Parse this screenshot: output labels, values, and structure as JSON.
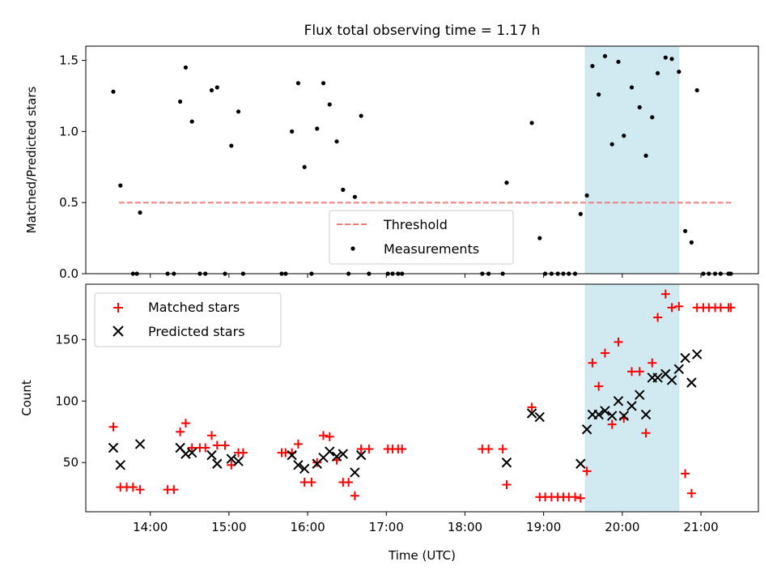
{
  "chart_data": [
    {
      "type": "scatter",
      "title": "Flux total observing time = 1.17 h",
      "ylabel": "Matched/Predicted stars",
      "xlabel": "",
      "xlim": [
        13.18,
        21.73
      ],
      "ylim": [
        0,
        1.6
      ],
      "yticks": [
        0.0,
        0.5,
        1.0,
        1.5
      ],
      "ytick_labels": [
        "0.0",
        "0.5",
        "1.0",
        "1.5"
      ],
      "highlight_span": [
        19.53,
        20.72
      ],
      "highlight_color": "#add8e6",
      "legend_position": "lower-center",
      "threshold": {
        "name": "Threshold",
        "y": 0.5,
        "x": [
          13.6,
          21.38
        ],
        "color": "#f08080",
        "style": "dashed"
      },
      "series": [
        {
          "name": "Measurements",
          "color": "#000000",
          "marker": "dot",
          "points": [
            [
              13.53,
              1.28
            ],
            [
              13.62,
              0.62
            ],
            [
              13.78,
              0.0
            ],
            [
              13.83,
              0.0
            ],
            [
              13.87,
              0.43
            ],
            [
              14.22,
              0.0
            ],
            [
              14.3,
              0.0
            ],
            [
              14.38,
              1.21
            ],
            [
              14.45,
              1.45
            ],
            [
              14.53,
              1.07
            ],
            [
              14.63,
              0.0
            ],
            [
              14.7,
              0.0
            ],
            [
              14.78,
              1.29
            ],
            [
              14.85,
              1.31
            ],
            [
              14.95,
              0.0
            ],
            [
              15.03,
              0.9
            ],
            [
              15.12,
              1.14
            ],
            [
              15.18,
              0.0
            ],
            [
              15.67,
              0.0
            ],
            [
              15.72,
              0.0
            ],
            [
              15.8,
              1.0
            ],
            [
              15.88,
              1.34
            ],
            [
              15.96,
              0.75
            ],
            [
              16.05,
              0.0
            ],
            [
              16.12,
              1.02
            ],
            [
              16.2,
              1.34
            ],
            [
              16.28,
              1.19
            ],
            [
              16.37,
              0.93
            ],
            [
              16.45,
              0.59
            ],
            [
              16.52,
              0.0
            ],
            [
              16.6,
              0.54
            ],
            [
              16.68,
              1.11
            ],
            [
              16.78,
              0.0
            ],
            [
              17.02,
              0.0
            ],
            [
              17.08,
              0.0
            ],
            [
              17.15,
              0.0
            ],
            [
              17.2,
              0.0
            ],
            [
              18.22,
              0.0
            ],
            [
              18.3,
              0.0
            ],
            [
              18.48,
              0.0
            ],
            [
              18.53,
              0.64
            ],
            [
              18.85,
              1.06
            ],
            [
              18.95,
              0.25
            ],
            [
              19.02,
              0.0
            ],
            [
              19.1,
              0.0
            ],
            [
              19.18,
              0.0
            ],
            [
              19.25,
              0.0
            ],
            [
              19.32,
              0.0
            ],
            [
              19.4,
              0.0
            ],
            [
              19.47,
              0.42
            ],
            [
              19.55,
              0.55
            ],
            [
              19.62,
              1.46
            ],
            [
              19.7,
              1.26
            ],
            [
              19.78,
              1.53
            ],
            [
              19.87,
              0.91
            ],
            [
              19.95,
              1.49
            ],
            [
              20.02,
              0.97
            ],
            [
              20.12,
              1.31
            ],
            [
              20.22,
              1.17
            ],
            [
              20.3,
              0.83
            ],
            [
              20.38,
              1.1
            ],
            [
              20.45,
              1.41
            ],
            [
              20.55,
              1.52
            ],
            [
              20.63,
              1.51
            ],
            [
              20.72,
              1.42
            ],
            [
              20.8,
              0.3
            ],
            [
              20.88,
              0.22
            ],
            [
              20.95,
              1.29
            ],
            [
              21.03,
              0.0
            ],
            [
              21.1,
              0.0
            ],
            [
              21.18,
              0.0
            ],
            [
              21.25,
              0.0
            ],
            [
              21.35,
              0.0
            ],
            [
              21.38,
              0.0
            ]
          ]
        }
      ]
    },
    {
      "type": "scatter",
      "title": "",
      "xlabel": "Time (UTC)",
      "ylabel": "Count",
      "xlim": [
        13.18,
        21.73
      ],
      "ylim": [
        10,
        195
      ],
      "yticks": [
        50,
        100,
        150
      ],
      "ytick_labels": [
        "50",
        "100",
        "150"
      ],
      "xticks": [
        14,
        15,
        16,
        17,
        18,
        19,
        20,
        21
      ],
      "xtick_labels": [
        "14:00",
        "15:00",
        "16:00",
        "17:00",
        "18:00",
        "19:00",
        "20:00",
        "21:00"
      ],
      "highlight_span": [
        19.53,
        20.72
      ],
      "highlight_color": "#add8e6",
      "legend_position": "upper-left",
      "series": [
        {
          "name": "Matched stars",
          "color": "#ff0000",
          "marker": "plus",
          "points": [
            [
              13.53,
              79
            ],
            [
              13.62,
              30
            ],
            [
              13.7,
              30
            ],
            [
              13.78,
              30
            ],
            [
              13.87,
              28
            ],
            [
              14.22,
              28
            ],
            [
              14.3,
              28
            ],
            [
              14.38,
              75
            ],
            [
              14.45,
              82
            ],
            [
              14.53,
              62
            ],
            [
              14.63,
              62
            ],
            [
              14.7,
              62
            ],
            [
              14.78,
              72
            ],
            [
              14.85,
              64
            ],
            [
              14.95,
              64
            ],
            [
              15.03,
              48
            ],
            [
              15.12,
              58
            ],
            [
              15.18,
              58
            ],
            [
              15.67,
              58
            ],
            [
              15.72,
              58
            ],
            [
              15.8,
              58
            ],
            [
              15.88,
              65
            ],
            [
              15.96,
              34
            ],
            [
              16.05,
              34
            ],
            [
              16.12,
              50
            ],
            [
              16.2,
              72
            ],
            [
              16.28,
              71
            ],
            [
              16.37,
              52
            ],
            [
              16.45,
              34
            ],
            [
              16.52,
              34
            ],
            [
              16.6,
              23
            ],
            [
              16.68,
              61
            ],
            [
              16.78,
              61
            ],
            [
              17.02,
              61
            ],
            [
              17.08,
              61
            ],
            [
              17.15,
              61
            ],
            [
              17.2,
              61
            ],
            [
              18.22,
              61
            ],
            [
              18.3,
              61
            ],
            [
              18.48,
              61
            ],
            [
              18.53,
              32
            ],
            [
              18.85,
              95
            ],
            [
              18.95,
              22
            ],
            [
              19.02,
              22
            ],
            [
              19.1,
              22
            ],
            [
              19.18,
              22
            ],
            [
              19.25,
              22
            ],
            [
              19.32,
              22
            ],
            [
              19.4,
              22
            ],
            [
              19.47,
              21
            ],
            [
              19.55,
              43
            ],
            [
              19.62,
              131
            ],
            [
              19.7,
              112
            ],
            [
              19.78,
              139
            ],
            [
              19.87,
              81
            ],
            [
              19.95,
              148
            ],
            [
              20.02,
              86
            ],
            [
              20.12,
              124
            ],
            [
              20.22,
              124
            ],
            [
              20.3,
              74
            ],
            [
              20.38,
              131
            ],
            [
              20.45,
              168
            ],
            [
              20.55,
              187
            ],
            [
              20.63,
              176
            ],
            [
              20.72,
              177
            ],
            [
              20.8,
              41
            ],
            [
              20.88,
              25
            ],
            [
              20.95,
              176
            ],
            [
              21.03,
              176
            ],
            [
              21.1,
              176
            ],
            [
              21.18,
              176
            ],
            [
              21.25,
              176
            ],
            [
              21.35,
              176
            ],
            [
              21.38,
              176
            ]
          ]
        },
        {
          "name": "Predicted stars",
          "color": "#000000",
          "marker": "x",
          "points": [
            [
              13.53,
              62
            ],
            [
              13.62,
              48
            ],
            [
              13.87,
              65
            ],
            [
              14.38,
              62
            ],
            [
              14.45,
              57
            ],
            [
              14.53,
              58
            ],
            [
              14.78,
              56
            ],
            [
              14.85,
              49
            ],
            [
              15.03,
              53
            ],
            [
              15.12,
              51
            ],
            [
              15.8,
              56
            ],
            [
              15.88,
              48
            ],
            [
              15.96,
              45
            ],
            [
              16.12,
              49
            ],
            [
              16.2,
              54
            ],
            [
              16.28,
              59
            ],
            [
              16.37,
              55
            ],
            [
              16.45,
              57
            ],
            [
              16.6,
              42
            ],
            [
              16.68,
              56
            ],
            [
              18.53,
              50
            ],
            [
              18.85,
              90
            ],
            [
              18.95,
              87
            ],
            [
              19.47,
              49
            ],
            [
              19.55,
              77
            ],
            [
              19.62,
              89
            ],
            [
              19.7,
              89
            ],
            [
              19.78,
              92
            ],
            [
              19.87,
              88
            ],
            [
              19.95,
              100
            ],
            [
              20.02,
              88
            ],
            [
              20.12,
              96
            ],
            [
              20.22,
              105
            ],
            [
              20.3,
              89
            ],
            [
              20.38,
              119
            ],
            [
              20.45,
              119
            ],
            [
              20.55,
              122
            ],
            [
              20.63,
              117
            ],
            [
              20.72,
              126
            ],
            [
              20.8,
              135
            ],
            [
              20.88,
              115
            ],
            [
              20.95,
              138
            ]
          ]
        }
      ]
    }
  ]
}
